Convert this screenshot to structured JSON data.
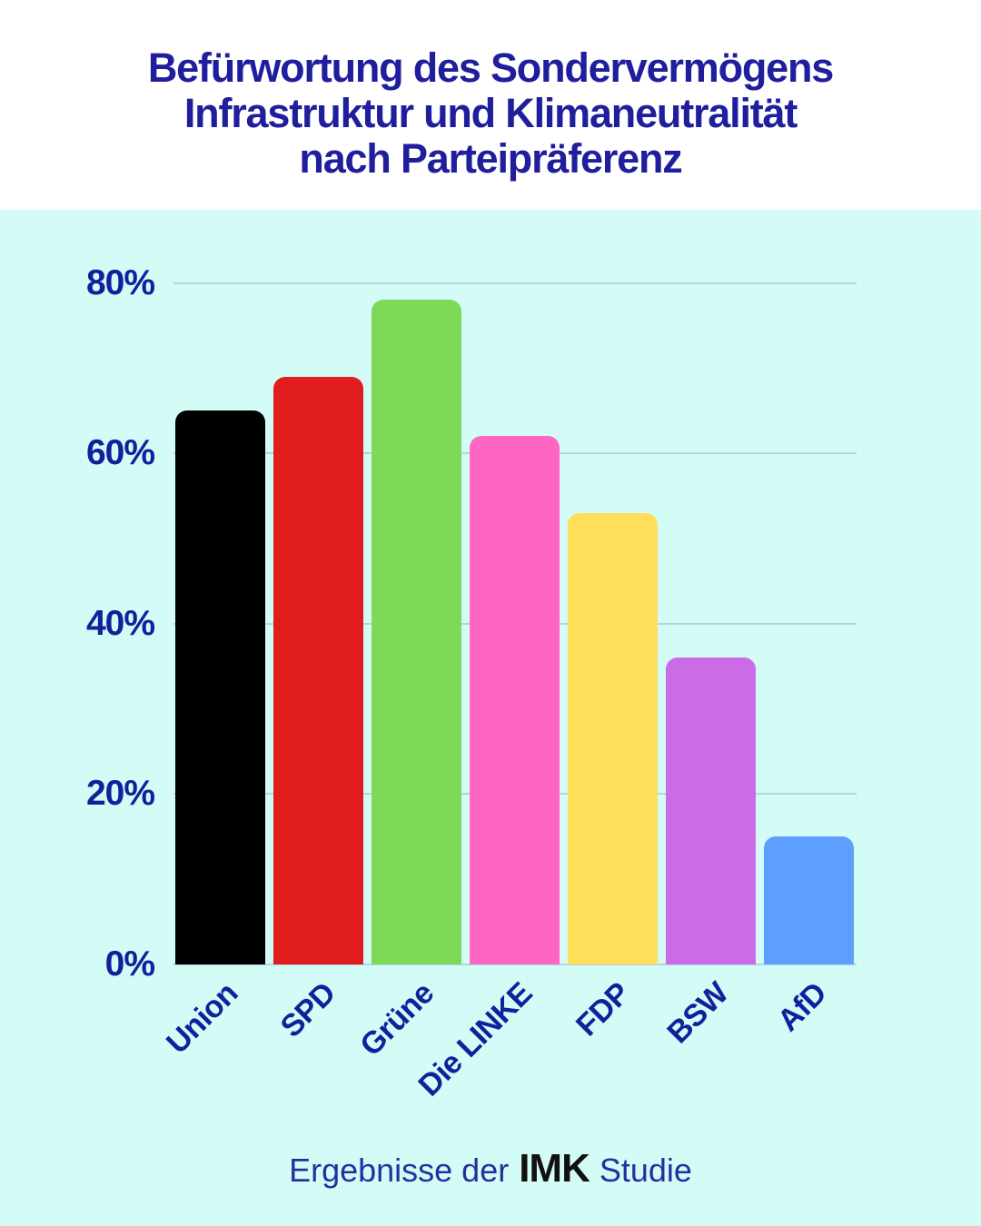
{
  "header": {
    "title_lines": [
      "Befürwortung des Sondervermögens",
      "Infrastruktur und Klimaneutralität",
      "nach Parteipräferenz"
    ]
  },
  "footer": {
    "prefix": "Ergebnisse der",
    "brand": "IMK",
    "suffix": "Studie"
  },
  "colors": {
    "header_background": "#ffffff",
    "chart_background": "#d3fcf6",
    "title_navy": "#1f1e9c",
    "axis_label_navy": "#141f9c",
    "gridline": "#b6d3e2",
    "footer_brand_black": "#111111"
  },
  "chart_data": {
    "type": "bar",
    "title": "Befürwortung des Sondervermögens Infrastruktur und Klimaneutralität nach Parteipräferenz",
    "categories": [
      "Union",
      "SPD",
      "Grüne",
      "Die LINKE",
      "FDP",
      "BSW",
      "AfD"
    ],
    "values": [
      65,
      69,
      78,
      62,
      53,
      36,
      15
    ],
    "bar_colors": [
      "#000000",
      "#e11c1c",
      "#7ed957",
      "#ff66c4",
      "#ffde59",
      "#cb6ce6",
      "#5e9eff"
    ],
    "y_ticks": [
      {
        "value": 80,
        "label": "80%"
      },
      {
        "value": 60,
        "label": "60%"
      },
      {
        "value": 40,
        "label": "40%"
      },
      {
        "value": 20,
        "label": "20%"
      },
      {
        "value": 0,
        "label": "0%"
      }
    ],
    "xlabel": "",
    "ylabel": "",
    "ylim": [
      0,
      85
    ],
    "grid": true,
    "legend": false,
    "x_tick_rotation_deg": -45
  }
}
